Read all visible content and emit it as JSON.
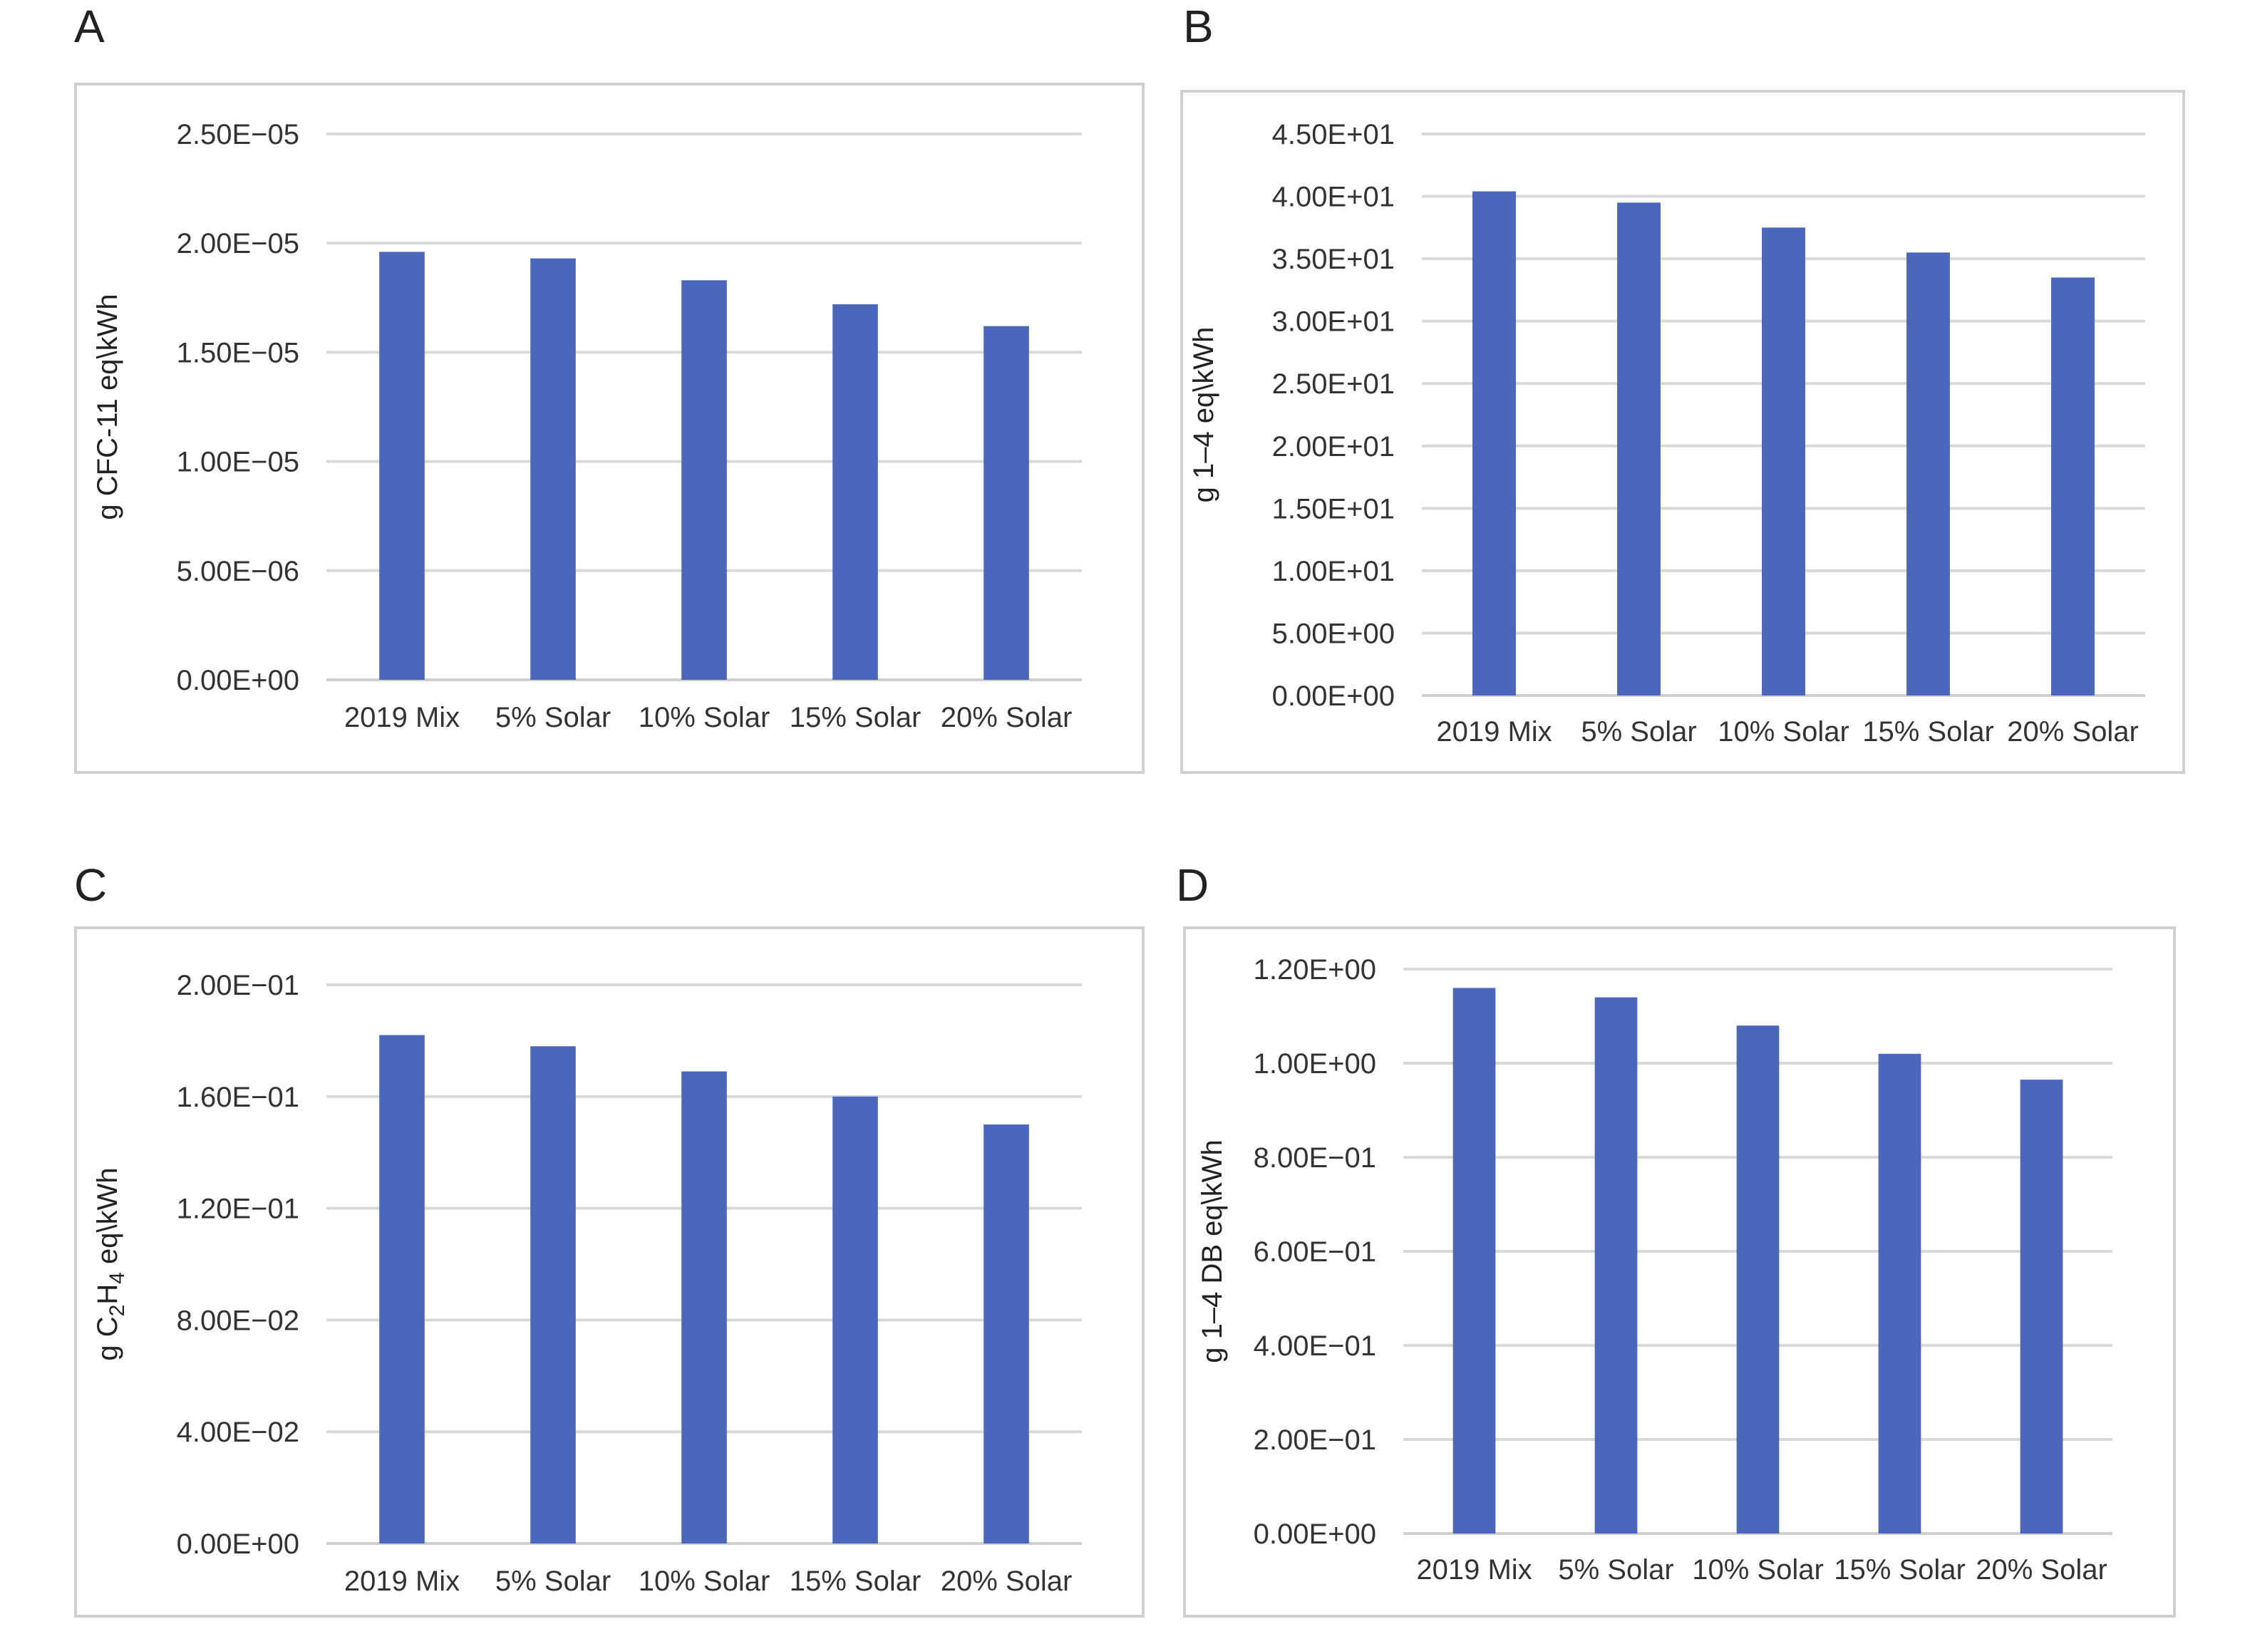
{
  "colors": {
    "bar": "#4a67bb",
    "grid": "#d9d9d9",
    "frame": "#d0d0d0"
  },
  "chart_data": [
    {
      "panel": "A",
      "type": "bar",
      "categories": [
        "2019 Mix",
        "5% Solar",
        "10% Solar",
        "15% Solar",
        "20% Solar"
      ],
      "values": [
        1.96e-05,
        1.93e-05,
        1.83e-05,
        1.72e-05,
        1.62e-05
      ],
      "ylabel": "g CFC-11 eq\\kWh",
      "ylabel_sub": [],
      "ylim": [
        0,
        2.5e-05
      ],
      "yticks": [
        "0.00E+00",
        "5.00E−06",
        "1.00E−05",
        "1.50E−05",
        "2.00E−05",
        "2.50E−05"
      ],
      "grid": true
    },
    {
      "panel": "B",
      "type": "bar",
      "categories": [
        "2019 Mix",
        "5% Solar",
        "10% Solar",
        "15% Solar",
        "20% Solar"
      ],
      "values": [
        40.4,
        39.5,
        37.5,
        35.5,
        33.5
      ],
      "ylabel": "g 1–4 eq\\kWh",
      "ylabel_sub": [],
      "ylim": [
        0,
        45
      ],
      "yticks": [
        "0.00E+00",
        "5.00E+00",
        "1.00E+01",
        "1.50E+01",
        "2.00E+01",
        "2.50E+01",
        "3.00E+01",
        "3.50E+01",
        "4.00E+01",
        "4.50E+01"
      ],
      "grid": true
    },
    {
      "panel": "C",
      "type": "bar",
      "categories": [
        "2019 Mix",
        "5% Solar",
        "10% Solar",
        "15% Solar",
        "20% Solar"
      ],
      "values": [
        0.182,
        0.178,
        0.169,
        0.16,
        0.15
      ],
      "ylabel": "g C2H4 eq\\kWh",
      "ylabel_sub": [
        "g C",
        "2",
        "H",
        "4",
        " eq\\kWh"
      ],
      "ylim": [
        0,
        0.2
      ],
      "yticks": [
        "0.00E+00",
        "4.00E−02",
        "8.00E−02",
        "1.20E−01",
        "1.60E−01",
        "2.00E−01"
      ],
      "grid": true
    },
    {
      "panel": "D",
      "type": "bar",
      "categories": [
        "2019 Mix",
        "5% Solar",
        "10% Solar",
        "15% Solar",
        "20% Solar"
      ],
      "values": [
        1.16,
        1.14,
        1.08,
        1.02,
        0.965
      ],
      "ylabel": "g 1–4 DB eq\\kWh",
      "ylabel_sub": [],
      "ylim": [
        0,
        1.2
      ],
      "yticks": [
        "0.00E+00",
        "2.00E−01",
        "4.00E−01",
        "6.00E−01",
        "8.00E−01",
        "1.00E+00",
        "1.20E+00"
      ],
      "grid": true
    }
  ]
}
